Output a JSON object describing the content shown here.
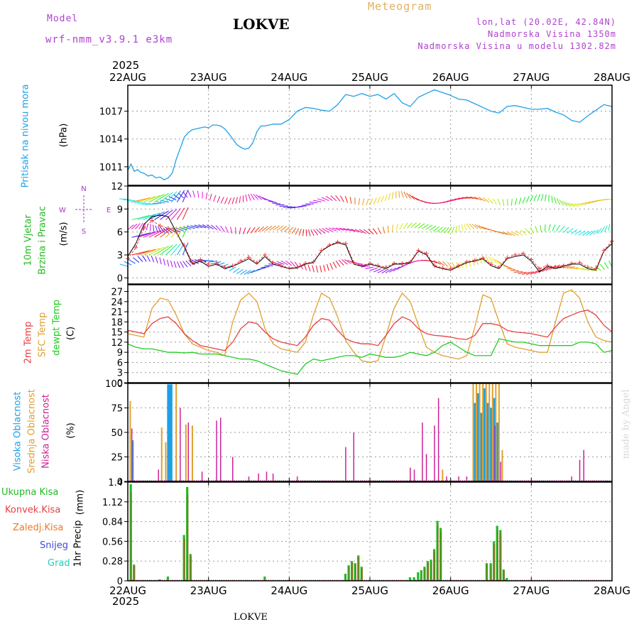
{
  "header": {
    "model_label": "Model",
    "model_name": "wrf-nmm_v3.9.1 e3km",
    "station": "LOKVE",
    "product": "Meteogram",
    "lonlat": "lon,lat (20.02E, 42.84N)",
    "elevation": "Nadmorska Visina 1350m",
    "model_elevation": "Nadmorska Visina u modelu 1302.82m",
    "footer_station": "LOKVE",
    "credit": "made by Angel"
  },
  "colors": {
    "pressure": "#1ea0e6",
    "wind_label": "#22bb22",
    "wind_units": "#aa33cc",
    "temp2m": "#e84040",
    "sfc": "#e0a030",
    "dewpt": "#22cc22",
    "high_cloud": "#1ea0e6",
    "mid_cloud": "#e0a030",
    "low_cloud": "#cc2299",
    "precip": "#22bb22",
    "conv": "#e84040",
    "frozen": "#f07828",
    "snow": "#4444dd",
    "graupel": "#22ccbb",
    "header_purple": "#b040d0",
    "header_orange": "#e0b060"
  },
  "time_axis": {
    "year": "2025",
    "labels": [
      "22AUG",
      "23AUG",
      "24AUG",
      "25AUG",
      "26AUG",
      "27AUG",
      "28AUG"
    ]
  },
  "chart_data": [
    {
      "id": "pressure",
      "type": "line",
      "ylabel": "Pritisak na nivou mora",
      "units": "(hPa)",
      "ylim": [
        1009,
        1019.8
      ],
      "yticks": [
        "1011",
        "1014",
        "1017"
      ],
      "x": [
        0,
        0.04,
        0.08,
        0.12,
        0.16,
        0.2,
        0.25,
        0.3,
        0.35,
        0.4,
        0.45,
        0.5,
        0.55,
        0.6,
        0.65,
        0.7,
        0.75,
        0.8,
        0.85,
        0.9,
        0.95,
        1.0,
        1.05,
        1.1,
        1.15,
        1.2,
        1.25,
        1.3,
        1.35,
        1.4,
        1.45,
        1.5,
        1.55,
        1.6,
        1.65,
        1.7,
        1.8,
        1.9,
        2.0,
        2.1,
        2.2,
        2.3,
        2.4,
        2.5,
        2.6,
        2.7,
        2.8,
        2.9,
        3.0,
        3.1,
        3.2,
        3.3,
        3.4,
        3.5,
        3.6,
        3.7,
        3.8,
        3.9,
        4.0,
        4.1,
        4.2,
        4.3,
        4.4,
        4.5,
        4.6,
        4.7,
        4.8,
        4.9,
        5.0,
        5.1,
        5.2,
        5.3,
        5.4,
        5.5,
        5.6,
        5.7,
        5.8,
        5.9,
        6.0
      ],
      "values": [
        1010.6,
        1011.3,
        1010.5,
        1010.7,
        1010.4,
        1010.3,
        1010.0,
        1010.1,
        1009.8,
        1009.9,
        1009.6,
        1009.8,
        1010.3,
        1011.8,
        1013.0,
        1014.2,
        1014.7,
        1015.0,
        1015.1,
        1015.2,
        1015.3,
        1015.2,
        1015.5,
        1015.5,
        1015.4,
        1015.1,
        1014.6,
        1014.0,
        1013.4,
        1013.1,
        1012.9,
        1013.0,
        1013.6,
        1014.8,
        1015.4,
        1015.4,
        1015.6,
        1015.6,
        1016.1,
        1017.0,
        1017.4,
        1017.3,
        1017.1,
        1017.0,
        1017.7,
        1018.8,
        1018.6,
        1018.9,
        1018.6,
        1018.8,
        1018.3,
        1018.9,
        1017.9,
        1017.5,
        1018.5,
        1018.9,
        1019.3,
        1019.0,
        1018.7,
        1018.3,
        1018.2,
        1017.8,
        1017.4,
        1017.0,
        1016.8,
        1017.5,
        1017.6,
        1017.4,
        1017.2,
        1017.2,
        1017.3,
        1016.9,
        1016.6,
        1016.0,
        1015.8,
        1016.5,
        1017.1,
        1017.7,
        1017.5
      ],
      "grid": true
    },
    {
      "id": "wind",
      "type": "line",
      "ylabel_lines": [
        "10m Vjetar",
        "Brzina i Pravac"
      ],
      "units": "(m/s)",
      "ylim": [
        -0.8,
        12
      ],
      "yticks": [
        "0",
        "3",
        "6",
        "9",
        "12"
      ],
      "compass": {
        "n": "N",
        "s": "S",
        "w": "W",
        "e": "E"
      },
      "x": [
        0,
        0.1,
        0.2,
        0.3,
        0.4,
        0.5,
        0.6,
        0.7,
        0.8,
        0.9,
        1.0,
        1.1,
        1.2,
        1.3,
        1.4,
        1.5,
        1.6,
        1.7,
        1.8,
        1.9,
        2.0,
        2.1,
        2.2,
        2.3,
        2.4,
        2.5,
        2.6,
        2.7,
        2.8,
        2.9,
        3.0,
        3.1,
        3.2,
        3.3,
        3.4,
        3.5,
        3.6,
        3.7,
        3.8,
        3.9,
        4.0,
        4.1,
        4.2,
        4.3,
        4.4,
        4.5,
        4.6,
        4.7,
        4.8,
        4.9,
        5.0,
        5.1,
        5.2,
        5.3,
        5.4,
        5.5,
        5.6,
        5.7,
        5.8,
        5.9,
        6.0
      ],
      "series": [
        {
          "name": "Brzina",
          "values": [
            2.8,
            4.5,
            7.0,
            8.0,
            8.2,
            8.0,
            6.0,
            4.0,
            1.8,
            2.2,
            1.5,
            1.8,
            1.2,
            1.5,
            2.0,
            2.5,
            1.8,
            2.8,
            1.8,
            1.5,
            1.2,
            1.3,
            1.8,
            2.0,
            3.5,
            4.2,
            4.6,
            4.3,
            1.8,
            1.5,
            1.8,
            1.5,
            1.2,
            1.8,
            1.8,
            2.0,
            3.5,
            3.0,
            1.5,
            1.2,
            1.0,
            1.5,
            2.0,
            2.2,
            2.5,
            1.6,
            1.2,
            2.5,
            2.8,
            3.0,
            2.2,
            0.8,
            1.5,
            1.2,
            1.5,
            1.8,
            1.8,
            1.2,
            1.0,
            3.5,
            4.5
          ]
        },
        {
          "name": "Udari",
          "values": [
            2.5,
            4.0,
            6.5,
            7.5,
            6.8,
            6.5,
            6.0,
            4.2,
            2.0,
            2.4,
            1.8,
            1.9,
            1.4,
            1.6,
            2.2,
            2.7,
            2.0,
            3.0,
            2.0,
            1.6,
            1.3,
            1.4,
            1.9,
            2.1,
            3.6,
            4.3,
            4.7,
            4.5,
            2.0,
            1.6,
            1.9,
            1.6,
            1.4,
            1.9,
            1.9,
            2.1,
            3.6,
            3.2,
            1.6,
            1.3,
            1.2,
            1.6,
            2.1,
            2.3,
            2.6,
            1.8,
            1.4,
            2.6,
            3.0,
            3.2,
            2.4,
            1.2,
            1.6,
            1.4,
            1.6,
            1.9,
            2.0,
            1.4,
            1.2,
            3.6,
            4.8
          ]
        }
      ]
    },
    {
      "id": "temp",
      "type": "line",
      "ylabel_lines": [
        "2m Temp",
        "SFC Temp",
        "dewpt Temp"
      ],
      "units": "(C)",
      "ylim": [
        0,
        29
      ],
      "yticks": [
        "0",
        "3",
        "6",
        "9",
        "12",
        "15",
        "18",
        "21",
        "24",
        "27"
      ],
      "x": [
        0,
        0.1,
        0.2,
        0.3,
        0.4,
        0.5,
        0.6,
        0.7,
        0.8,
        0.9,
        1.0,
        1.1,
        1.2,
        1.3,
        1.4,
        1.5,
        1.6,
        1.7,
        1.8,
        1.9,
        2.0,
        2.1,
        2.2,
        2.3,
        2.4,
        2.5,
        2.6,
        2.7,
        2.8,
        2.9,
        3.0,
        3.1,
        3.2,
        3.3,
        3.4,
        3.5,
        3.6,
        3.7,
        3.8,
        3.9,
        4.0,
        4.1,
        4.2,
        4.3,
        4.4,
        4.5,
        4.6,
        4.7,
        4.8,
        4.9,
        5.0,
        5.1,
        5.2,
        5.3,
        5.4,
        5.5,
        5.6,
        5.7,
        5.8,
        5.9,
        6.0
      ],
      "series": [
        {
          "name": "2m Temp",
          "values": [
            15.5,
            15.0,
            14.5,
            17.5,
            19.0,
            19.5,
            17.5,
            14.5,
            12.5,
            11.0,
            10.5,
            10.0,
            9.5,
            12.0,
            16.0,
            18.0,
            17.5,
            15.0,
            13.0,
            12.0,
            11.5,
            11.0,
            13.5,
            17.0,
            19.0,
            18.5,
            15.5,
            13.0,
            12.0,
            11.5,
            11.5,
            11.0,
            14.0,
            17.5,
            19.5,
            18.5,
            16.0,
            14.5,
            14.0,
            13.8,
            13.5,
            13.0,
            12.8,
            14.0,
            17.5,
            17.5,
            17.0,
            15.5,
            15.0,
            14.8,
            14.5,
            14.0,
            13.5,
            16.5,
            19.0,
            20.0,
            21.0,
            21.5,
            20.0,
            17.0,
            15.0
          ]
        },
        {
          "name": "SFC Temp",
          "values": [
            14.5,
            14.0,
            13.5,
            22.0,
            25.0,
            24.5,
            20.0,
            14.5,
            11.5,
            10.5,
            9.5,
            9.0,
            8.0,
            18.0,
            24.5,
            26.5,
            24.0,
            16.0,
            11.5,
            10.0,
            9.5,
            9.0,
            12.0,
            20.0,
            26.5,
            25.0,
            19.5,
            12.5,
            9.0,
            6.5,
            6.0,
            6.5,
            14.0,
            22.0,
            26.5,
            24.0,
            17.0,
            10.5,
            9.0,
            8.0,
            7.5,
            7.0,
            8.0,
            16.5,
            26.0,
            25.0,
            18.0,
            11.5,
            10.5,
            10.0,
            9.5,
            9.0,
            9.0,
            18.0,
            26.5,
            27.5,
            25.0,
            18.0,
            13.5,
            12.5,
            12.0
          ]
        },
        {
          "name": "dewpt Temp",
          "values": [
            11.5,
            10.5,
            10.0,
            10.0,
            9.5,
            9.0,
            9.0,
            8.8,
            9.0,
            8.5,
            8.5,
            8.5,
            8.0,
            7.5,
            7.0,
            7.0,
            6.5,
            5.5,
            4.5,
            3.5,
            3.0,
            2.5,
            5.5,
            7.0,
            6.5,
            7.0,
            7.5,
            8.0,
            8.0,
            7.5,
            8.5,
            8.0,
            7.5,
            7.5,
            8.0,
            9.0,
            8.5,
            8.0,
            9.0,
            11.0,
            12.0,
            10.5,
            9.0,
            8.0,
            8.0,
            8.0,
            13.0,
            12.5,
            12.0,
            12.0,
            11.5,
            11.0,
            11.0,
            11.0,
            11.0,
            11.0,
            12.0,
            12.0,
            11.5,
            9.0,
            9.5
          ]
        }
      ]
    },
    {
      "id": "clouds",
      "type": "bar",
      "ylabel_lines": [
        "Visoka Oblacnost",
        "Srednja Oblacnost",
        "Niska Oblacnost"
      ],
      "units": "(%)",
      "ylim": [
        0,
        100
      ],
      "yticks": [
        "0",
        "25",
        "50",
        "75",
        "100"
      ],
      "series": [
        {
          "name": "Visoka",
          "x": [
            0.06,
            0.5,
            0.52,
            0.54,
            4.3,
            4.34,
            4.38,
            4.42,
            4.46,
            4.5,
            4.54,
            4.58
          ],
          "values": [
            42,
            99,
            99,
            99,
            80,
            90,
            70,
            95,
            80,
            75,
            85,
            60
          ]
        },
        {
          "name": "Srednja",
          "x": [
            0.03,
            0.42,
            0.47,
            0.6,
            0.72,
            0.8,
            3.9,
            4.28,
            4.32,
            4.36,
            4.4,
            4.44,
            4.48,
            4.52,
            4.56,
            4.6,
            4.64
          ],
          "values": [
            82,
            55,
            40,
            100,
            58,
            57,
            12,
            100,
            100,
            100,
            100,
            100,
            100,
            100,
            100,
            100,
            32
          ]
        },
        {
          "name": "Niska",
          "x": [
            0.05,
            0.38,
            0.65,
            0.75,
            0.92,
            1.1,
            1.15,
            1.3,
            1.5,
            1.62,
            1.72,
            1.8,
            2.1,
            2.7,
            2.8,
            3.5,
            3.55,
            3.65,
            3.7,
            3.8,
            3.85,
            3.95,
            4.1,
            4.2,
            4.55,
            4.62,
            5.5,
            5.6,
            5.65
          ],
          "values": [
            54,
            12,
            75,
            60,
            10,
            62,
            65,
            25,
            5,
            8,
            10,
            8,
            5,
            35,
            50,
            14,
            12,
            60,
            28,
            57,
            85,
            5,
            5,
            5,
            57,
            20,
            5,
            22,
            32
          ]
        }
      ]
    },
    {
      "id": "precip",
      "type": "bar",
      "ylabel": "1hr Precip",
      "units": "(mm)",
      "legend": [
        "Ukupna Kisa",
        "Konvek.Kisa",
        "Zaledj.Kisa",
        "Snijeg",
        "Grad"
      ],
      "ylim": [
        0,
        1.4
      ],
      "yticks": [
        "0",
        "0.28",
        "0.56",
        "0.84",
        "1.12",
        "1.4"
      ],
      "x": [
        0.04,
        0.08,
        0.4,
        0.5,
        0.7,
        0.74,
        0.78,
        1.7,
        2.7,
        2.74,
        2.78,
        2.82,
        2.86,
        2.9,
        3.5,
        3.55,
        3.6,
        3.64,
        3.68,
        3.72,
        3.76,
        3.8,
        3.84,
        3.88,
        4.45,
        4.5,
        4.54,
        4.58,
        4.62,
        4.66,
        4.7
      ],
      "values": [
        1.37,
        0.23,
        0.02,
        0.06,
        0.65,
        1.33,
        0.38,
        0.06,
        0.1,
        0.22,
        0.28,
        0.25,
        0.36,
        0.2,
        0.05,
        0.05,
        0.12,
        0.15,
        0.2,
        0.28,
        0.3,
        0.45,
        0.85,
        0.75,
        0.25,
        0.25,
        0.56,
        0.78,
        0.72,
        0.16,
        0.04
      ]
    }
  ]
}
